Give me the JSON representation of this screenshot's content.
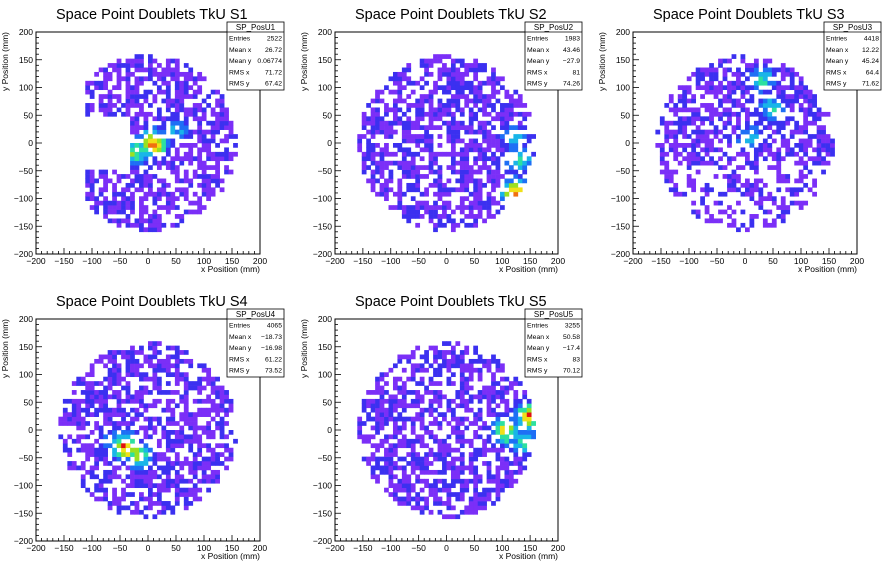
{
  "chart_data": [
    {
      "type": "heatmap",
      "title": "Space Point Doublets TkU S1",
      "xlabel": "x Position (mm)",
      "ylabel": "y Position (mm)",
      "xlim": [
        -200,
        200
      ],
      "ylim": [
        -200,
        200
      ],
      "x_ticks": [
        "−200",
        "−150",
        "−100",
        "−50",
        "0",
        "50",
        "100",
        "150",
        "200"
      ],
      "y_ticks": [
        "−200",
        "−150",
        "−100",
        "−50",
        "0",
        "50",
        "100",
        "150",
        "200"
      ],
      "stats": {
        "name": "SP_PosU1",
        "rows": [
          {
            "label": "Entries",
            "value": "2522"
          },
          {
            "label": "Mean x",
            "value": "26.72"
          },
          {
            "label": "Mean y",
            "value": "0.06774"
          },
          {
            "label": "RMS x",
            "value": "71.72"
          },
          {
            "label": "RMS y",
            "value": "67.42"
          }
        ]
      },
      "hotspots": [
        {
          "x": 10,
          "y": 0,
          "intensity": 0.95
        },
        {
          "x": -20,
          "y": -15,
          "intensity": 0.7
        },
        {
          "x": 50,
          "y": 25,
          "intensity": 0.45
        }
      ],
      "x_range": [
        -110,
        160
      ],
      "empty_region": "left-center"
    },
    {
      "type": "heatmap",
      "title": "Space Point Doublets TkU S2",
      "xlabel": "x Position (mm)",
      "ylabel": "y Position (mm)",
      "xlim": [
        -200,
        200
      ],
      "ylim": [
        -200,
        200
      ],
      "x_ticks": [
        "−200",
        "−150",
        "−100",
        "−50",
        "0",
        "50",
        "100",
        "150",
        "200"
      ],
      "y_ticks": [
        "−200",
        "−150",
        "−100",
        "−50",
        "0",
        "50",
        "100",
        "150",
        "200"
      ],
      "stats": {
        "name": "SP_PosU2",
        "rows": [
          {
            "label": "Entries",
            "value": "1983"
          },
          {
            "label": "Mean x",
            "value": "43.46"
          },
          {
            "label": "Mean y",
            "value": "−27.9"
          },
          {
            "label": "RMS x",
            "value": "81"
          },
          {
            "label": "RMS y",
            "value": "74.26"
          }
        ]
      },
      "hotspots": [
        {
          "x": 125,
          "y": -90,
          "intensity": 1.0
        },
        {
          "x": 130,
          "y": -30,
          "intensity": 0.6
        },
        {
          "x": 120,
          "y": 10,
          "intensity": 0.45
        }
      ],
      "x_range": [
        -160,
        160
      ],
      "empty_region": "none"
    },
    {
      "type": "heatmap",
      "title": "Space Point Doublets TkU S3",
      "xlabel": "x Position (mm)",
      "ylabel": "y Position (mm)",
      "xlim": [
        -200,
        200
      ],
      "ylim": [
        -200,
        200
      ],
      "x_ticks": [
        "−200",
        "−150",
        "−100",
        "−50",
        "0",
        "50",
        "100",
        "150",
        "200"
      ],
      "y_ticks": [
        "−200",
        "−150",
        "−100",
        "−50",
        "0",
        "50",
        "100",
        "150",
        "200"
      ],
      "stats": {
        "name": "SP_PosU3",
        "rows": [
          {
            "label": "Entries",
            "value": "4418"
          },
          {
            "label": "Mean x",
            "value": "12.22"
          },
          {
            "label": "Mean y",
            "value": "45.24"
          },
          {
            "label": "RMS x",
            "value": "64.4"
          },
          {
            "label": "RMS y",
            "value": "71.62"
          }
        ]
      },
      "hotspots": [
        {
          "x": 30,
          "y": 115,
          "intensity": 0.6
        },
        {
          "x": 50,
          "y": 60,
          "intensity": 0.55
        },
        {
          "x": 10,
          "y": 10,
          "intensity": 0.5
        }
      ],
      "x_range": [
        -160,
        160
      ],
      "empty_region": "lower-half"
    },
    {
      "type": "heatmap",
      "title": "Space Point Doublets TkU S4",
      "xlabel": "x Position (mm)",
      "ylabel": "y Position (mm)",
      "xlim": [
        -200,
        200
      ],
      "ylim": [
        -200,
        200
      ],
      "x_ticks": [
        "−200",
        "−150",
        "−100",
        "−50",
        "0",
        "50",
        "100",
        "150",
        "200"
      ],
      "y_ticks": [
        "−200",
        "−150",
        "−100",
        "−50",
        "0",
        "50",
        "100",
        "150",
        "200"
      ],
      "stats": {
        "name": "SP_PosU4",
        "rows": [
          {
            "label": "Entries",
            "value": "4065"
          },
          {
            "label": "Mean x",
            "value": "−18.73"
          },
          {
            "label": "Mean y",
            "value": "−16.98"
          },
          {
            "label": "RMS x",
            "value": "61.22"
          },
          {
            "label": "RMS y",
            "value": "73.52"
          }
        ]
      },
      "hotspots": [
        {
          "x": -40,
          "y": -30,
          "intensity": 0.95
        },
        {
          "x": -15,
          "y": -45,
          "intensity": 0.7
        },
        {
          "x": -60,
          "y": -20,
          "intensity": 0.5
        }
      ],
      "x_range": [
        -160,
        160
      ],
      "empty_region": "none"
    },
    {
      "type": "heatmap",
      "title": "Space Point Doublets TkU S5",
      "xlabel": "x Position (mm)",
      "ylabel": "y Position (mm)",
      "xlim": [
        -200,
        200
      ],
      "ylim": [
        -200,
        200
      ],
      "x_ticks": [
        "−200",
        "−150",
        "−100",
        "−50",
        "0",
        "50",
        "100",
        "150",
        "200"
      ],
      "y_ticks": [
        "−200",
        "−150",
        "−100",
        "−50",
        "0",
        "50",
        "100",
        "150",
        "200"
      ],
      "stats": {
        "name": "SP_PosU5",
        "rows": [
          {
            "label": "Entries",
            "value": "3255"
          },
          {
            "label": "Mean x",
            "value": "50.58"
          },
          {
            "label": "Mean y",
            "value": "−17.4"
          },
          {
            "label": "RMS x",
            "value": "83"
          },
          {
            "label": "RMS y",
            "value": "70.12"
          }
        ]
      },
      "hotspots": [
        {
          "x": 150,
          "y": 25,
          "intensity": 0.95
        },
        {
          "x": 105,
          "y": 0,
          "intensity": 0.85
        },
        {
          "x": 140,
          "y": -20,
          "intensity": 0.6
        }
      ],
      "x_range": [
        -160,
        160
      ],
      "empty_region": "none"
    }
  ],
  "colors": {
    "frame": "#000000",
    "background": "#ffffff",
    "palette": [
      "#7b2ff7",
      "#3b30f0",
      "#1e6ff5",
      "#19b5e8",
      "#2de0a0",
      "#9be020",
      "#f0e018",
      "#f07010",
      "#e01010"
    ]
  }
}
